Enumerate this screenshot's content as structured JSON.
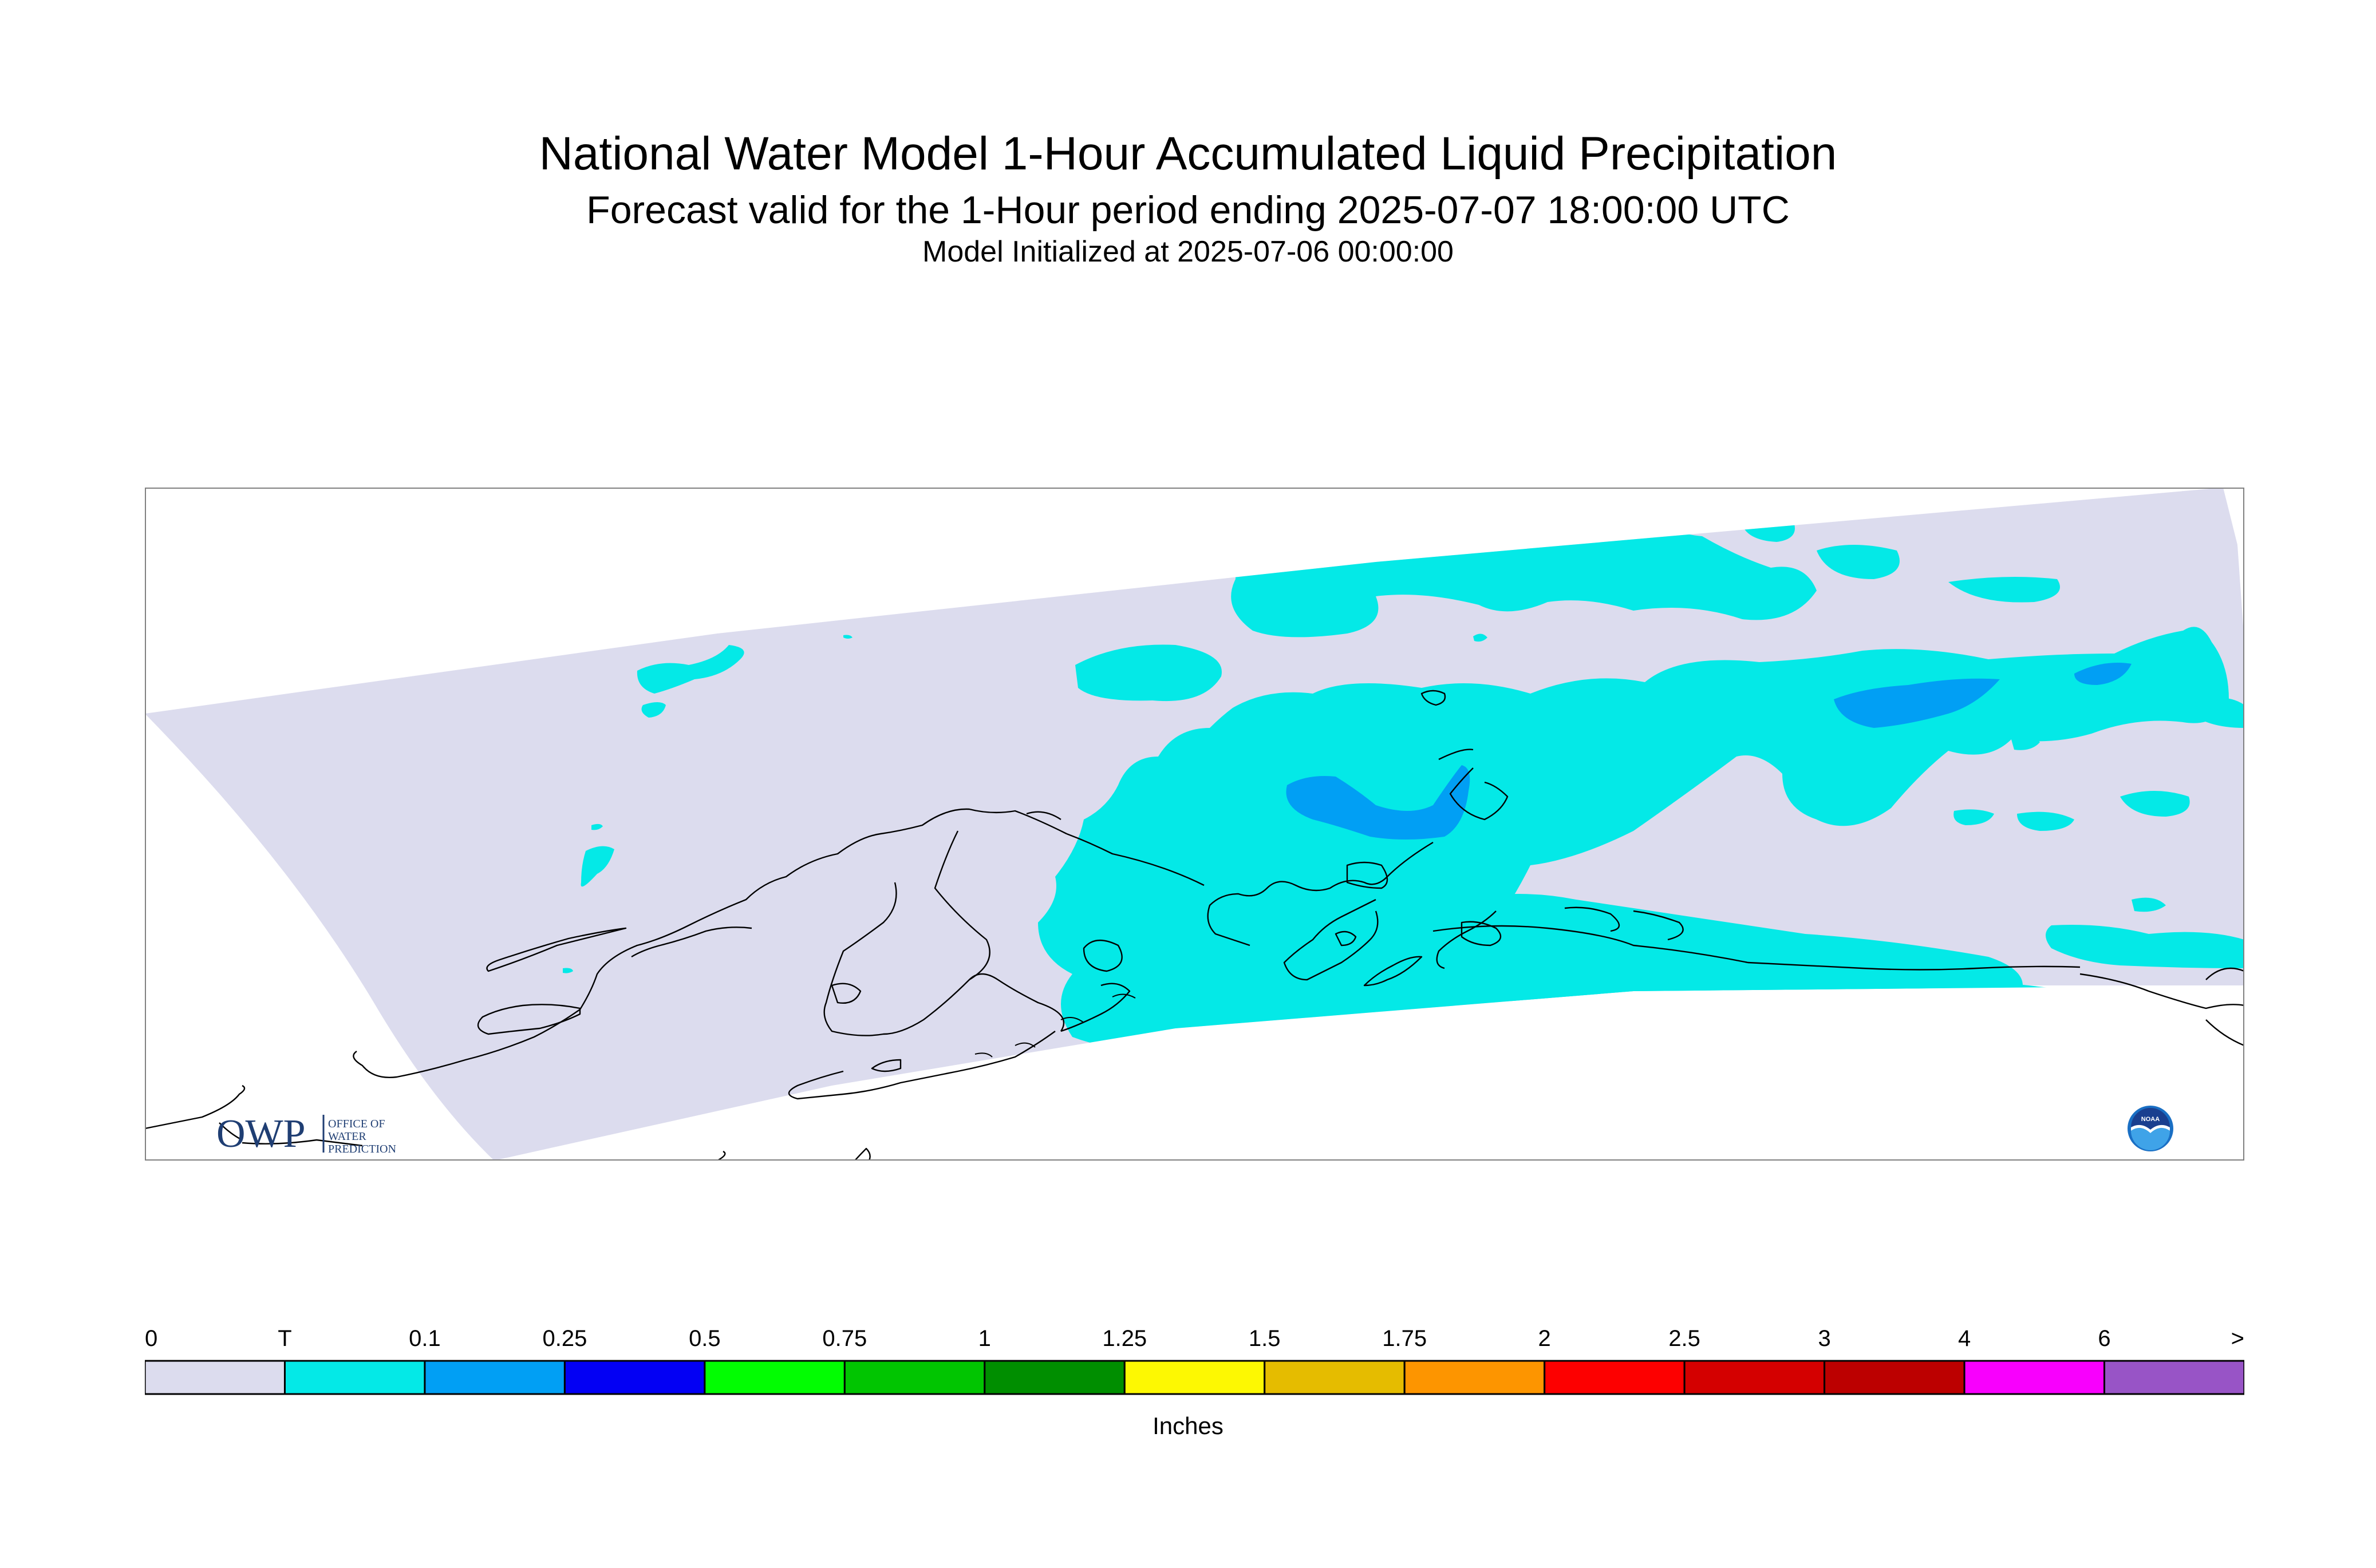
{
  "title": {
    "line1": "National Water Model 1-Hour Accumulated Liquid Precipitation",
    "line2": "Forecast valid for the 1-Hour period ending 2025-07-07 18:00:00 UTC",
    "line3": "Model Initialized at 2025-07-06 00:00:00"
  },
  "logos": {
    "owp_mark": "OWP",
    "owp_text": [
      "OFFICE OF",
      "WATER",
      "PREDICTION"
    ],
    "noaa_mark": "NOAA"
  },
  "legend": {
    "labels": [
      "0",
      "T",
      "0.1",
      "0.25",
      "0.5",
      "0.75",
      "1",
      "1.25",
      "1.5",
      "1.75",
      "2",
      "2.5",
      "3",
      "4",
      "6",
      ">"
    ],
    "colors": [
      "#dcdcee",
      "#04e9e7",
      "#019ff4",
      "#0300f4",
      "#02fd02",
      "#01c501",
      "#008e00",
      "#fdf802",
      "#e5bc00",
      "#fd9500",
      "#fd0000",
      "#d40000",
      "#bc0000",
      "#f800fd",
      "#9854c6"
    ],
    "units": "Inches"
  },
  "colors": {
    "no_precip": "#dcdcee",
    "trace": "#04e9e7",
    "light": "#019ff4",
    "coastline": "#000000"
  }
}
